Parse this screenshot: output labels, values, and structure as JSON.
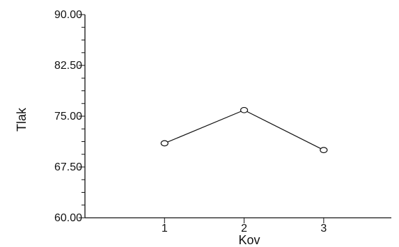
{
  "chart_data": {
    "type": "line",
    "title": "",
    "xlabel": "Kov",
    "ylabel": "Tlak",
    "x": [
      1,
      2,
      3
    ],
    "x_tick_labels": [
      "1",
      "2",
      "3"
    ],
    "xlim": [
      0,
      3.85
    ],
    "ylim": [
      60,
      90
    ],
    "y_ticks": [
      60,
      67.5,
      75,
      82.5,
      90
    ],
    "y_tick_labels": [
      "60.00",
      "67.50",
      "75.00",
      "82.50",
      "90.00"
    ],
    "y_minor_step": 1.875,
    "grid": false,
    "legend": "none",
    "marker": "open-circle",
    "series": [
      {
        "values": [
          71.0,
          75.9,
          70.0
        ]
      }
    ],
    "colors": {
      "line": "#111111",
      "marker_fill": "#ffffff",
      "background": "#ffffff"
    }
  }
}
